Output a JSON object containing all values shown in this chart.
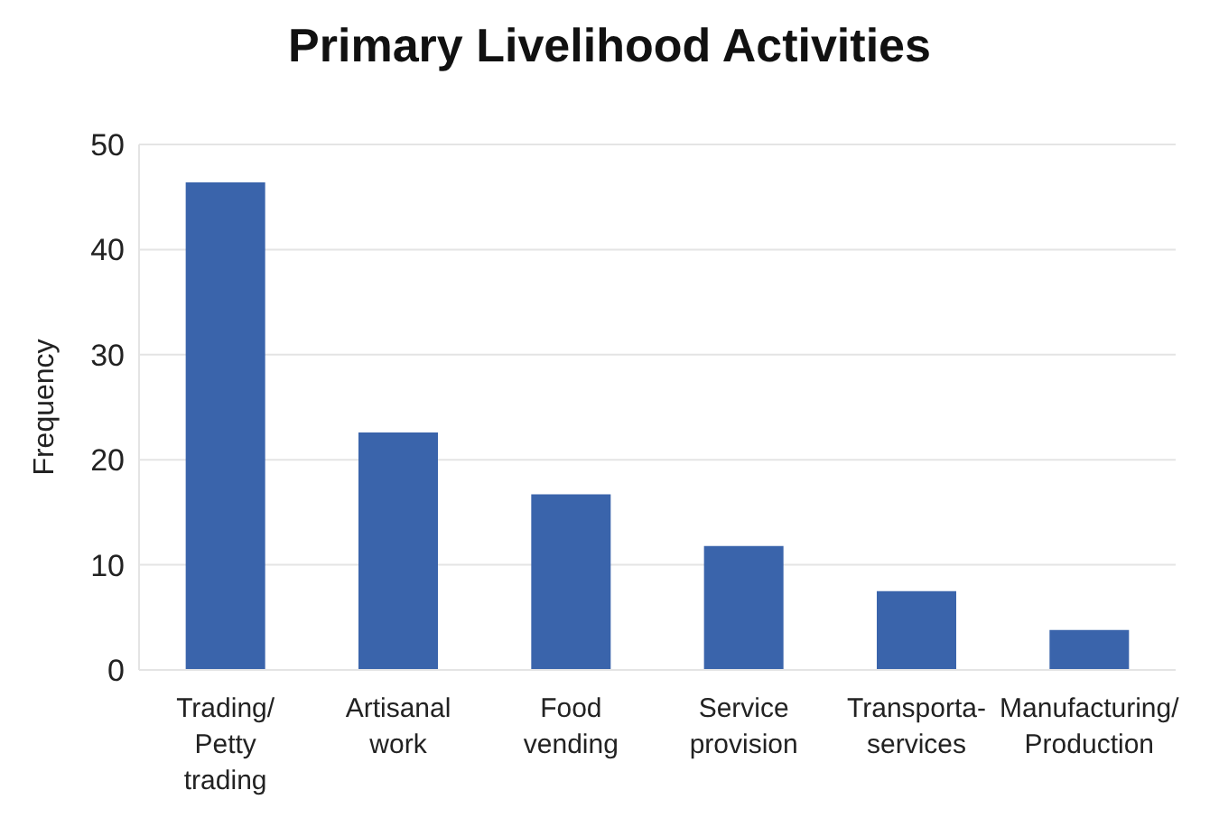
{
  "chart_data": {
    "type": "bar",
    "title": "Primary Livelihood Activities",
    "ylabel": "Frequency",
    "categories": [
      "Trading/ Petty trading",
      "Artisanal work",
      "Food vending",
      "Service provision",
      "Transporta-services",
      "Manufacturing/ Production"
    ],
    "values": [
      46.4,
      22.6,
      16.7,
      11.8,
      7.5,
      3.8
    ],
    "color": "#3a64ab",
    "ylim": [
      0,
      50
    ],
    "yticks": [
      0,
      10,
      20,
      30,
      40,
      50
    ],
    "grid": "y"
  }
}
